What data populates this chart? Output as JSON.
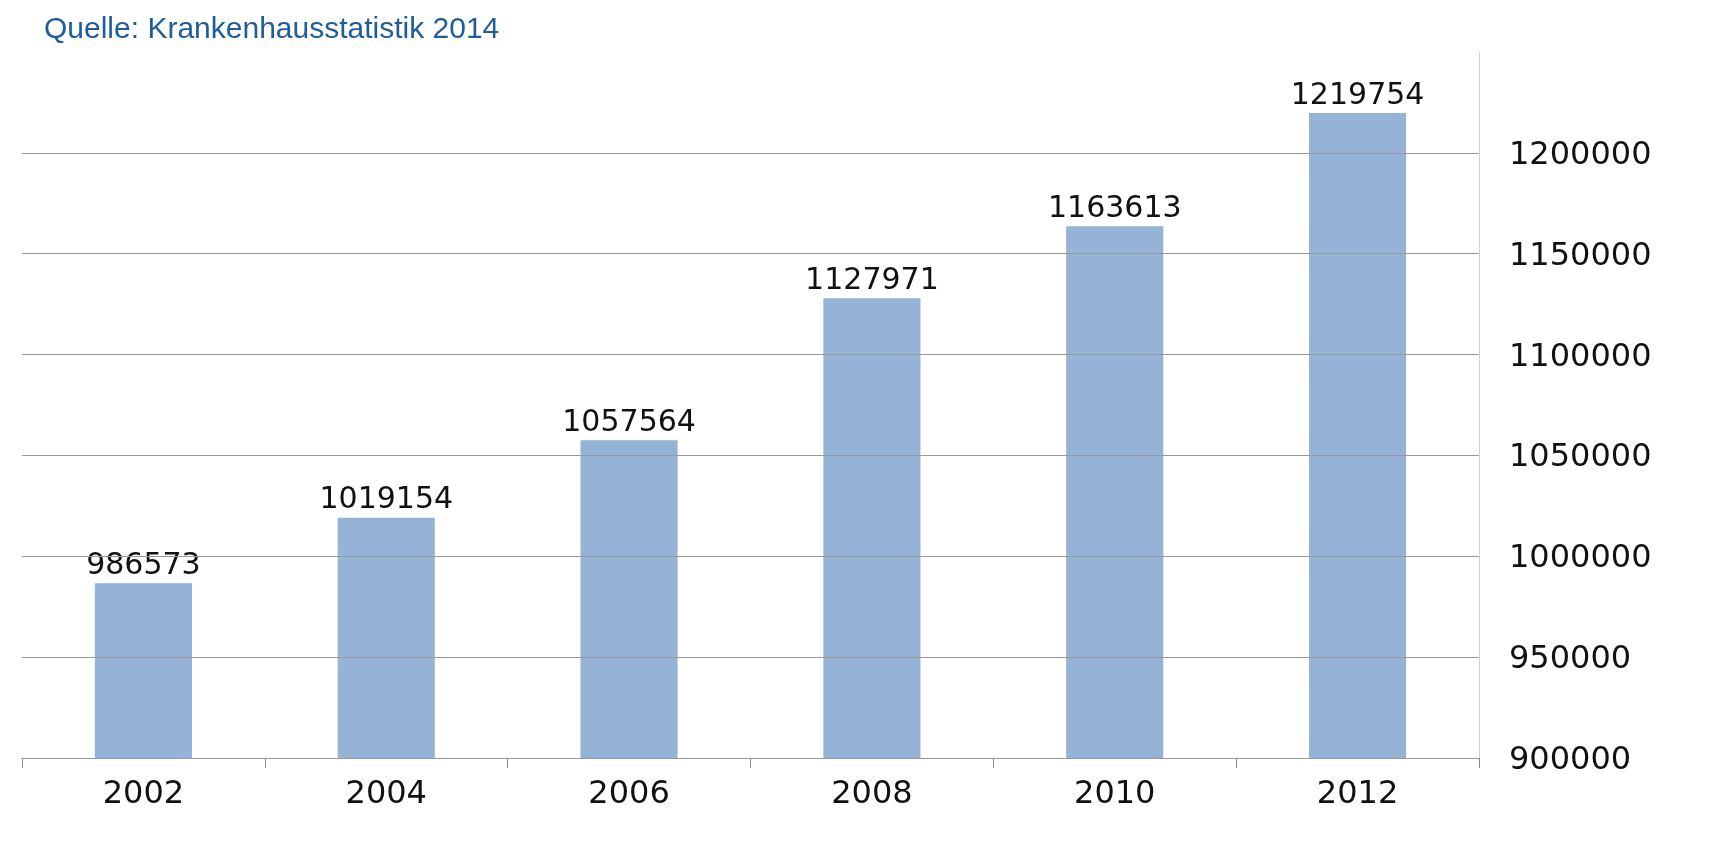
{
  "chart_data": {
    "type": "bar",
    "annotations": [
      "Quelle: Krankenhausstatistik 2014"
    ],
    "categories": [
      "2002",
      "2004",
      "2006",
      "2008",
      "2010",
      "2012"
    ],
    "values": [
      986573,
      1019154,
      1057564,
      1127971,
      1163613,
      1219754
    ],
    "color": "#95b3d7",
    "data_labels": true,
    "grid": "y",
    "ylim": [
      900000,
      1250000
    ],
    "yticks": [
      900000,
      950000,
      1000000,
      1050000,
      1100000,
      1150000,
      1200000
    ]
  }
}
